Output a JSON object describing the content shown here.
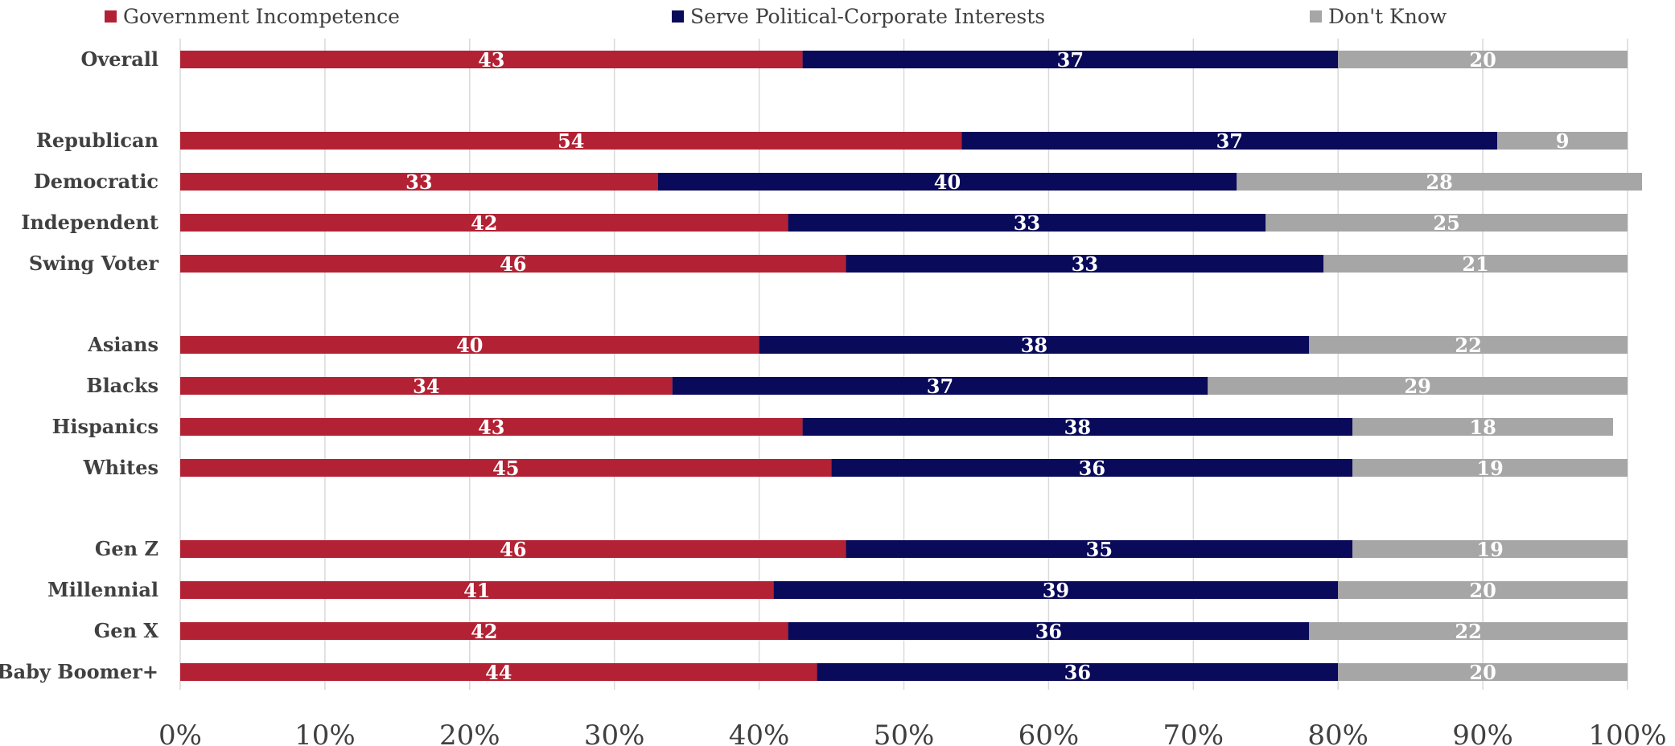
{
  "chart_data": {
    "type": "bar",
    "orientation": "horizontal",
    "stacked": "percent",
    "categories": [
      "Overall",
      "Republican",
      "Democratic",
      "Independent",
      "Swing Voter",
      "Asians",
      "Blacks",
      "Hispanics",
      "Whites",
      "Gen Z",
      "Millennial",
      "Gen X",
      "Baby Boomer+"
    ],
    "series": [
      {
        "name": "Government Incompetence",
        "color": "#b22234",
        "values": [
          43,
          54,
          33,
          42,
          46,
          40,
          34,
          43,
          45,
          46,
          41,
          42,
          44
        ]
      },
      {
        "name": "Serve Political-Corporate Interests",
        "color": "#0a0a5a",
        "values": [
          37,
          37,
          40,
          33,
          33,
          38,
          37,
          38,
          36,
          35,
          39,
          36,
          36
        ]
      },
      {
        "name": "Don't Know",
        "color": "#a6a6a6",
        "values": [
          20,
          9,
          28,
          25,
          21,
          22,
          29,
          18,
          19,
          19,
          20,
          22,
          20
        ]
      }
    ],
    "xlim": [
      0,
      100
    ],
    "x_ticks": [
      "0%",
      "10%",
      "20%",
      "30%",
      "40%",
      "50%",
      "60%",
      "70%",
      "80%",
      "90%",
      "100%"
    ],
    "legend_position": "top",
    "grid": "vertical"
  }
}
